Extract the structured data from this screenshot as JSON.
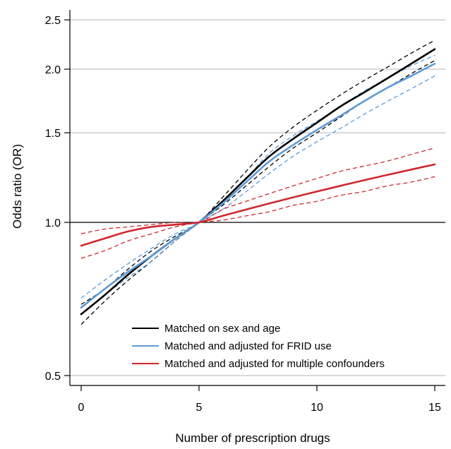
{
  "chart_data": {
    "type": "line",
    "title": "",
    "xlabel": "Number of prescription drugs",
    "ylabel": "Odds ratio (OR)",
    "xlim": [
      0,
      15
    ],
    "ylim": [
      0.45,
      2.6
    ],
    "y_scale": "log",
    "x_ticks": [
      0,
      5,
      10,
      15
    ],
    "x_tick_labels": [
      "0",
      "5",
      "10",
      "15"
    ],
    "y_ticks": [
      0.5,
      1.0,
      1.5,
      2.0,
      2.5
    ],
    "y_tick_labels": [
      "0.5",
      "1.0",
      "1.5",
      "2.0",
      "2.5"
    ],
    "grid": "horizontal",
    "reference_line_y": 1.0,
    "legend_position": "bottom-right",
    "x": [
      0,
      1,
      2,
      3,
      4,
      5,
      6,
      7,
      8,
      9,
      10,
      11,
      12,
      13,
      14,
      15
    ],
    "series": [
      {
        "name": "Matched on sex and age",
        "color": "#000000",
        "style": "solid",
        "values": [
          0.66,
          0.72,
          0.79,
          0.86,
          0.93,
          1.0,
          1.1,
          1.22,
          1.35,
          1.46,
          1.57,
          1.69,
          1.8,
          1.92,
          2.05,
          2.19
        ]
      },
      {
        "name": "Matched on sex and age (95% CI)",
        "color": "#000000",
        "style": "dashed",
        "legend": false,
        "lower": [
          0.63,
          0.7,
          0.77,
          0.84,
          0.92,
          1.0,
          1.08,
          1.18,
          1.29,
          1.4,
          1.5,
          1.61,
          1.73,
          1.84,
          1.96,
          2.08
        ],
        "upper": [
          0.69,
          0.74,
          0.81,
          0.88,
          0.94,
          1.0,
          1.12,
          1.26,
          1.41,
          1.54,
          1.66,
          1.78,
          1.9,
          2.02,
          2.15,
          2.28
        ]
      },
      {
        "name": "Matched and adjusted for FRID use",
        "color": "#5b9bd5",
        "style": "solid",
        "values": [
          0.68,
          0.74,
          0.8,
          0.86,
          0.93,
          1.0,
          1.09,
          1.2,
          1.32,
          1.42,
          1.52,
          1.62,
          1.73,
          1.84,
          1.94,
          2.05
        ]
      },
      {
        "name": "Matched and adjusted for FRID use (95% CI)",
        "color": "#5b9bd5",
        "style": "dashed",
        "legend": false,
        "lower": [
          0.66,
          0.72,
          0.78,
          0.84,
          0.92,
          1.0,
          1.06,
          1.15,
          1.25,
          1.35,
          1.44,
          1.53,
          1.63,
          1.73,
          1.83,
          1.94
        ],
        "upper": [
          0.71,
          0.77,
          0.83,
          0.89,
          0.95,
          1.0,
          1.1,
          1.22,
          1.37,
          1.48,
          1.58,
          1.69,
          1.81,
          1.92,
          2.03,
          2.13
        ]
      },
      {
        "name": "Matched and adjusted for multiple confounders",
        "color": "#d0282e",
        "style": "solid",
        "values": [
          0.9,
          0.93,
          0.96,
          0.98,
          0.99,
          1.0,
          1.03,
          1.06,
          1.09,
          1.12,
          1.15,
          1.18,
          1.21,
          1.24,
          1.27,
          1.3
        ]
      },
      {
        "name": "Matched and adjusted for multiple confounders (95% CI)",
        "color": "#d0282e",
        "style": "dashed",
        "legend": false,
        "lower": [
          0.85,
          0.88,
          0.92,
          0.95,
          0.98,
          1.0,
          1.01,
          1.03,
          1.05,
          1.08,
          1.1,
          1.13,
          1.15,
          1.18,
          1.2,
          1.23
        ],
        "upper": [
          0.95,
          0.97,
          0.98,
          0.99,
          1.0,
          1.0,
          1.06,
          1.1,
          1.14,
          1.18,
          1.22,
          1.26,
          1.29,
          1.32,
          1.36,
          1.4
        ]
      }
    ]
  }
}
